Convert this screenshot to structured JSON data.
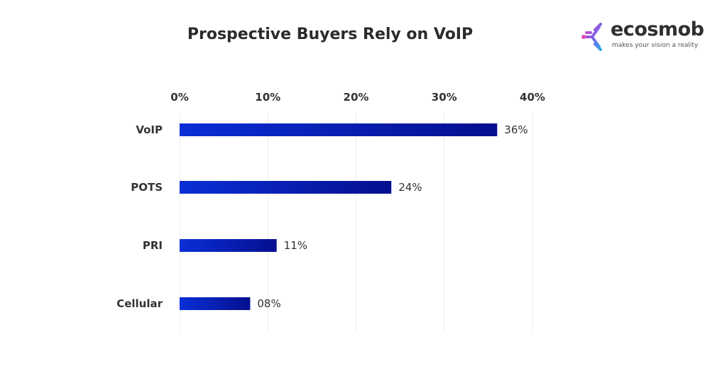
{
  "logo": {
    "name": "ecosmob",
    "tagline": "makes your vision a reality"
  },
  "chart_data": {
    "type": "bar",
    "orientation": "horizontal",
    "title": "Prospective Buyers Rely on VoIP",
    "categories": [
      "VoIP",
      "POTS",
      "PRI",
      "Cellular"
    ],
    "values": [
      36,
      24,
      11,
      8
    ],
    "data_labels": [
      "36%",
      "24%",
      "11%",
      "08%"
    ],
    "xlim": [
      0,
      40
    ],
    "xticks": [
      0,
      10,
      20,
      30,
      40
    ],
    "xtick_labels": [
      "0%",
      "10%",
      "20%",
      "30%",
      "40%"
    ],
    "xaxis_position": "top",
    "grid": true,
    "colors": {
      "bar_start": "#0a2fd6",
      "bar_end": "#050f8f",
      "grid": "#ececec",
      "text": "#333333"
    }
  }
}
